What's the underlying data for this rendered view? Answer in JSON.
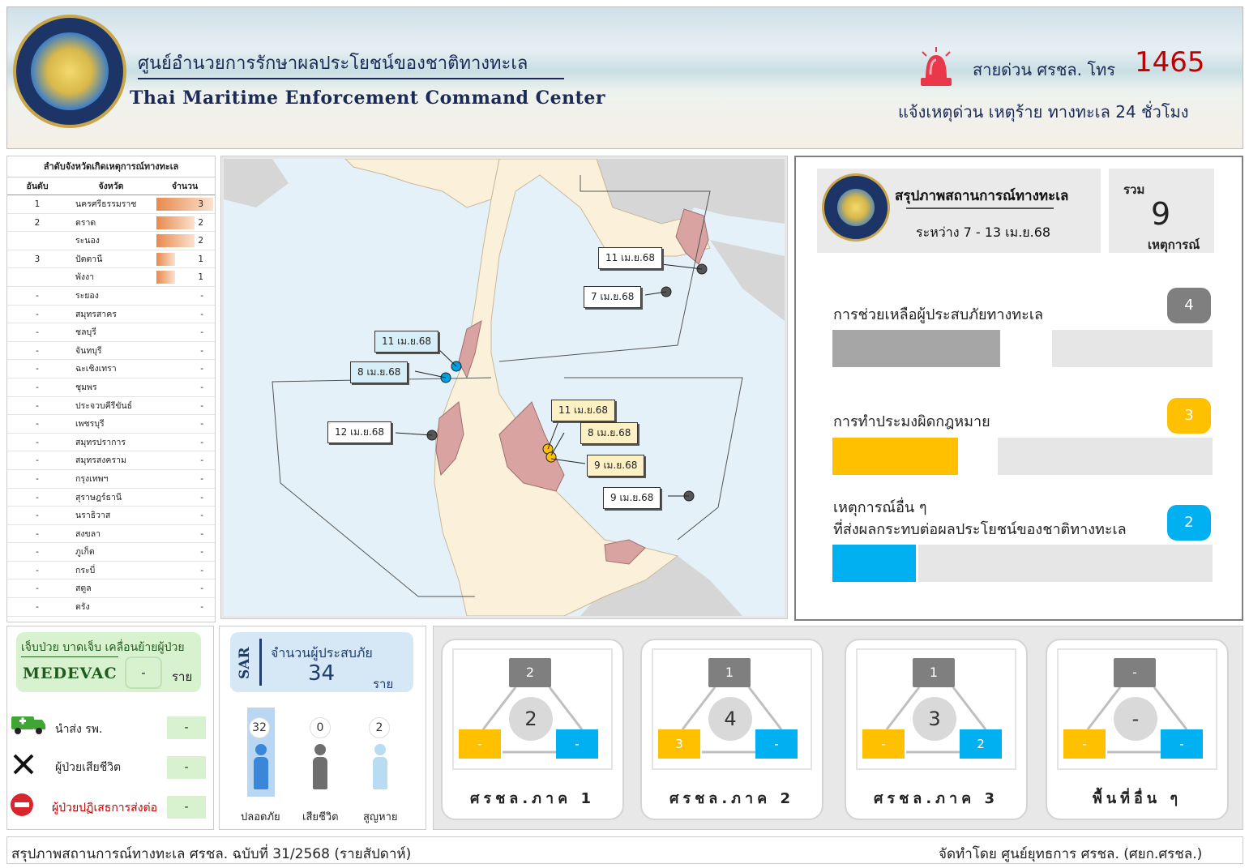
{
  "header": {
    "title_th": "ศูนย์อำนวยการรักษาผลประโยชน์ของชาติทางทะเล",
    "title_en": "Thai Maritime Enforcement Command Center",
    "hotline_label": "สายด่วน ศรชล. โทร",
    "hotline_number": "1465",
    "hotline_sub": "แจ้งเหตุด่วน เหตุร้าย ทางทะเล 24 ชั่วโมง",
    "logo_icon": "emblem-icon",
    "siren_icon": "siren-icon"
  },
  "rank_table": {
    "title": "ลำดับจังหวัดเกิดเหตุการณ์ทางทะเล",
    "headers": [
      "อันดับ",
      "จังหวัด",
      "จำนวน"
    ],
    "rows": [
      {
        "rank": "1",
        "province": "นครศรีธรรมราช",
        "count": "3",
        "fill": 1.0
      },
      {
        "rank": "2",
        "province": "ตราด",
        "count": "2",
        "fill": 0.67
      },
      {
        "rank": "",
        "province": "ระนอง",
        "count": "2",
        "fill": 0.67
      },
      {
        "rank": "3",
        "province": "ปัตตานี",
        "count": "1",
        "fill": 0.33
      },
      {
        "rank": "",
        "province": "พังงา",
        "count": "1",
        "fill": 0.33
      },
      {
        "rank": "-",
        "province": "ระยอง",
        "count": "-",
        "fill": 0
      },
      {
        "rank": "-",
        "province": "สมุทรสาคร",
        "count": "-",
        "fill": 0
      },
      {
        "rank": "-",
        "province": "ชลบุรี",
        "count": "-",
        "fill": 0
      },
      {
        "rank": "-",
        "province": "จันทบุรี",
        "count": "-",
        "fill": 0
      },
      {
        "rank": "-",
        "province": "ฉะเชิงเทรา",
        "count": "-",
        "fill": 0
      },
      {
        "rank": "-",
        "province": "ชุมพร",
        "count": "-",
        "fill": 0
      },
      {
        "rank": "-",
        "province": "ประจวบคีรีขันธ์",
        "count": "-",
        "fill": 0
      },
      {
        "rank": "-",
        "province": "เพชรบุรี",
        "count": "-",
        "fill": 0
      },
      {
        "rank": "-",
        "province": "สมุทรปราการ",
        "count": "-",
        "fill": 0
      },
      {
        "rank": "-",
        "province": "สมุทรสงคราม",
        "count": "-",
        "fill": 0
      },
      {
        "rank": "-",
        "province": "กรุงเทพฯ",
        "count": "-",
        "fill": 0
      },
      {
        "rank": "-",
        "province": "สุราษฎร์ธานี",
        "count": "-",
        "fill": 0
      },
      {
        "rank": "-",
        "province": "นราธิวาส",
        "count": "-",
        "fill": 0
      },
      {
        "rank": "-",
        "province": "สงขลา",
        "count": "-",
        "fill": 0
      },
      {
        "rank": "-",
        "province": "ภูเก็ต",
        "count": "-",
        "fill": 0
      },
      {
        "rank": "-",
        "province": "กระบี่",
        "count": "-",
        "fill": 0
      },
      {
        "rank": "-",
        "province": "สตูล",
        "count": "-",
        "fill": 0
      },
      {
        "rank": "-",
        "province": "ตรัง",
        "count": "-",
        "fill": 0
      }
    ],
    "bar_color": "#e88a4c"
  },
  "map": {
    "labels": [
      {
        "text": "11 เม.ย.68",
        "style": "white"
      },
      {
        "text": "7 เม.ย.68",
        "style": "white"
      },
      {
        "text": "11 เม.ย.68",
        "style": "blue"
      },
      {
        "text": "8 เม.ย.68",
        "style": "blue"
      },
      {
        "text": "12 เม.ย.68",
        "style": "white"
      },
      {
        "text": "11 เม.ย.68",
        "style": "yellow"
      },
      {
        "text": "8 เม.ย.68",
        "style": "yellow"
      },
      {
        "text": "9 เม.ย.68",
        "style": "yellow"
      },
      {
        "text": "9 เม.ย.68",
        "style": "white"
      }
    ],
    "colors": {
      "sea": "#e4f1f8",
      "land": "#fbf0d9",
      "highlight": "#d8a3a1",
      "other_land": "#d6d6d6"
    }
  },
  "summary": {
    "title": "สรุปภาพสถานการณ์ทางทะเล",
    "range": "ระหว่าง 7 - 13 เม.ย.68",
    "total_label": "รวม",
    "total_value": "9",
    "total_unit": "เหตุการณ์",
    "categories": [
      {
        "label": "การช่วยเหลือผู้ประสบภัยทางทะเล",
        "label2": "",
        "value": "4",
        "fraction": 0.44,
        "color": "#a6a6a6",
        "badge_color": "#7f7f7f"
      },
      {
        "label": "การทำประมงผิดกฎหมาย",
        "label2": "",
        "value": "3",
        "fraction": 0.33,
        "color": "#ffc000",
        "badge_color": "#ffc000"
      },
      {
        "label": "เหตุการณ์อื่น ๆ",
        "label2": "ที่ส่งผลกระทบต่อผลประโยชน์ของชาติทางทะเล",
        "value": "2",
        "fraction": 0.22,
        "color": "#00b0f0",
        "badge_color": "#00b0f0"
      }
    ]
  },
  "medevac": {
    "title": "เจ็บป่วย บาดเจ็บ เคลื่อนย้ายผู้ป่วย",
    "title_en": "MEDEVAC",
    "value": "-",
    "unit": "ราย",
    "rows": [
      {
        "label": "นำส่ง รพ.",
        "value": "-",
        "icon": "ambulance-icon"
      },
      {
        "label": "ผู้ป่วยเสียชีวิต",
        "value": "-",
        "icon": "x-mark-icon"
      },
      {
        "label": "ผู้ป่วยปฏิเสธการส่งต่อ",
        "value": "-",
        "icon": "no-entry-icon"
      }
    ]
  },
  "sar": {
    "vertical_label": "SAR",
    "title": "จำนวนผู้ประสบภัย",
    "value": "34",
    "unit": "ราย",
    "people": [
      {
        "label": "ปลอดภัย",
        "count": "32",
        "color": "#3a86d8"
      },
      {
        "label": "เสียชีวิต",
        "count": "0",
        "color": "#6e6e6e"
      },
      {
        "label": "สูญหาย",
        "count": "2",
        "color": "#b8dcf2"
      }
    ]
  },
  "regions": [
    {
      "name": "ศรชล.ภาค 1",
      "top": "2",
      "center": "2",
      "left": "-",
      "right": "-"
    },
    {
      "name": "ศรชล.ภาค 2",
      "top": "1",
      "center": "4",
      "left": "3",
      "right": "-"
    },
    {
      "name": "ศรชล.ภาค 3",
      "top": "1",
      "center": "3",
      "left": "-",
      "right": "2"
    },
    {
      "name": "พื้นที่อื่น ๆ",
      "top": "-",
      "center": "-",
      "left": "-",
      "right": "-"
    }
  ],
  "footer": {
    "left": "สรุปภาพสถานการณ์ทางทะเล ศรชล. ฉบับที่ 31/2568 (รายสัปดาห์)",
    "right": "จัดทำโดย ศูนย์ยุทธการ ศรชล. (ศยก.ศรชล.)"
  }
}
